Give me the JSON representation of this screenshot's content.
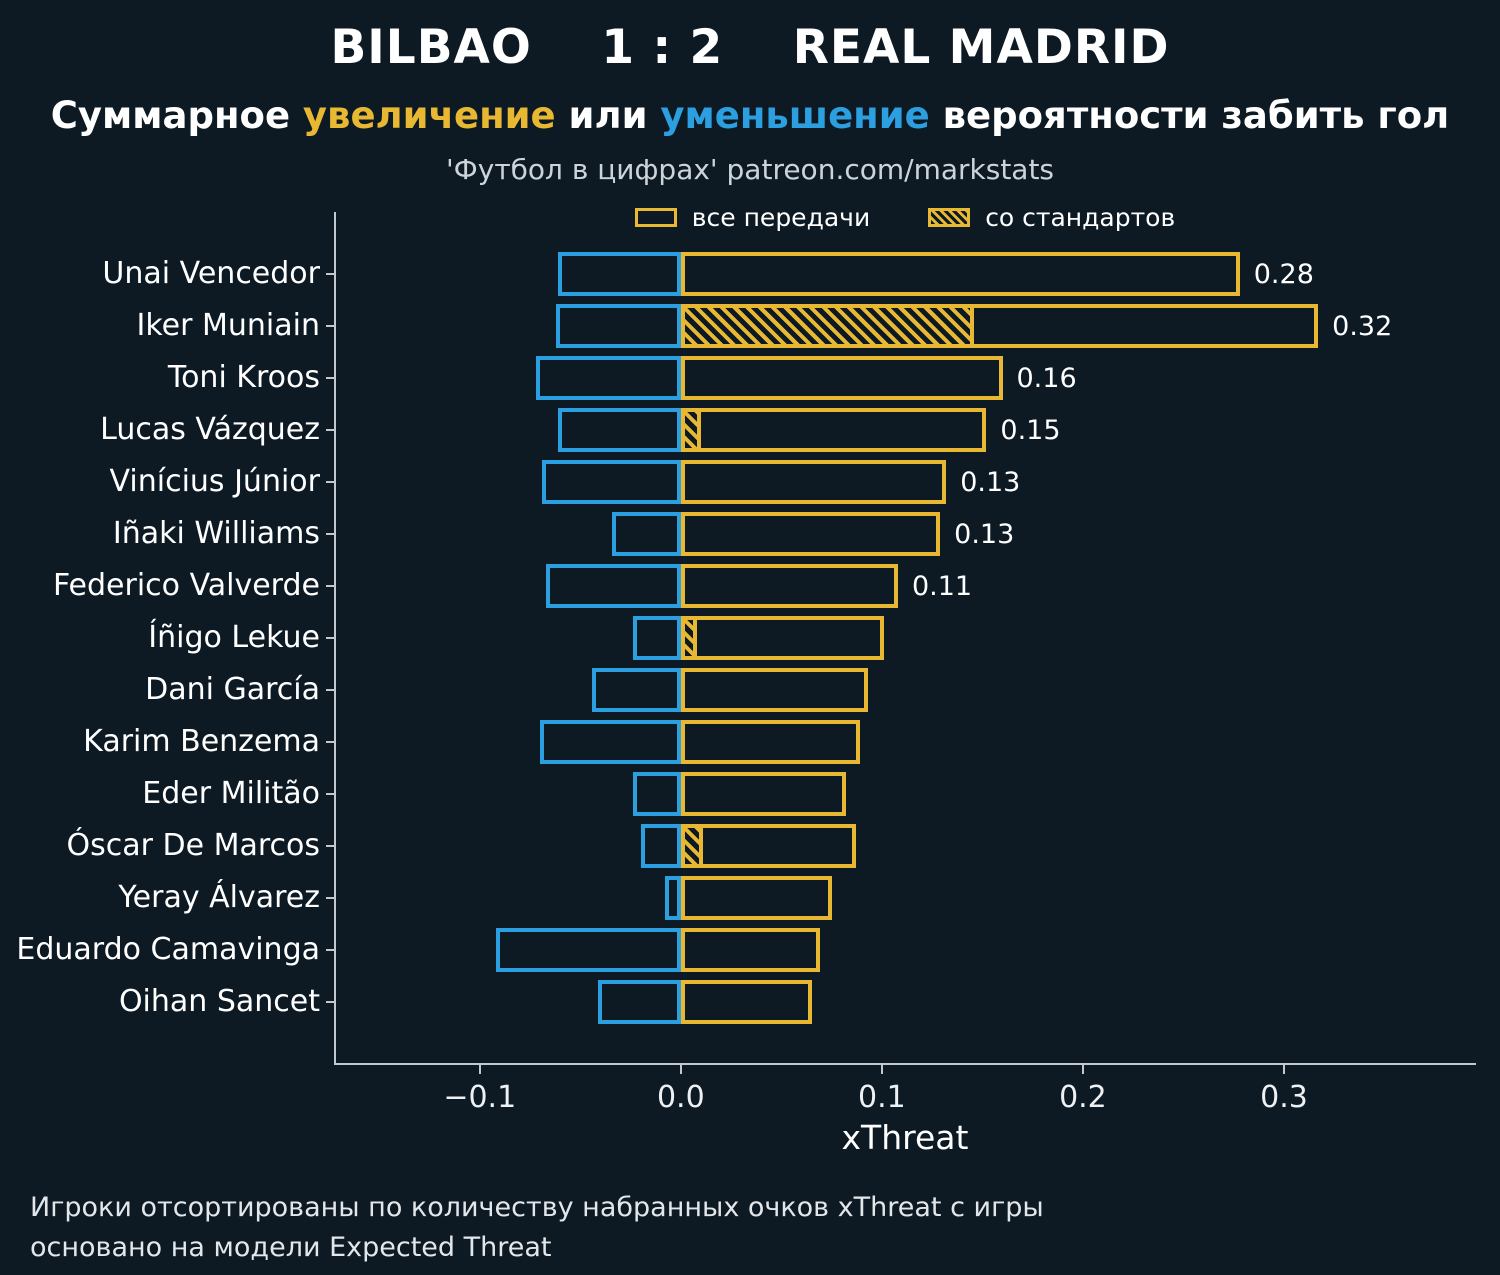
{
  "header": {
    "title": "BILBAO    1 : 2    REAL MADRID",
    "subtitle_parts": {
      "pre": "Суммарное ",
      "increase": "увеличение",
      "mid": " или ",
      "decrease": "уменьшение",
      "post": " вероятности забить гол"
    },
    "source": "'Футбол в цифрах' patreon.com/markstats"
  },
  "legend": {
    "all_passes": "все передачи",
    "set_pieces": "со стандартов"
  },
  "colors": {
    "background": "#0d1a24",
    "positive": "#e8b832",
    "negative": "#2b9fe0",
    "text": "#ffffff"
  },
  "chart_data": {
    "type": "bar",
    "orientation": "horizontal",
    "title": "BILBAO 1 : 2 REAL MADRID — xThreat по игрокам",
    "xlabel": "xThreat",
    "xlim": [
      -0.172,
      0.395
    ],
    "grid": false,
    "legend_position": "top-center",
    "categories": [
      "Unai Vencedor",
      "Iker Muniain",
      "Toni Kroos",
      "Lucas Vázquez",
      "Vinícius Júnior",
      "Iñaki Williams",
      "Federico Valverde",
      "Íñigo Lekue",
      "Dani García",
      "Karim Benzema",
      "Eder Militão",
      "Óscar De Marcos",
      "Yeray Álvarez",
      "Eduardo Camavinga",
      "Oihan Sancet"
    ],
    "series": [
      {
        "name": "все передачи (увеличение)",
        "values": [
          0.278,
          0.317,
          0.16,
          0.152,
          0.132,
          0.129,
          0.108,
          0.101,
          0.093,
          0.089,
          0.082,
          0.087,
          0.075,
          0.069,
          0.065
        ]
      },
      {
        "name": "уменьшение вероятности",
        "values": [
          -0.061,
          -0.062,
          -0.072,
          -0.061,
          -0.069,
          -0.034,
          -0.067,
          -0.024,
          -0.044,
          -0.07,
          -0.024,
          -0.02,
          -0.008,
          -0.092,
          -0.041
        ]
      },
      {
        "name": "со стандартов",
        "values": [
          0,
          0.146,
          0,
          0.01,
          0,
          0,
          0,
          0.008,
          0,
          0,
          0,
          0.011,
          0,
          0,
          0
        ]
      }
    ],
    "value_labels": [
      "0.28",
      "0.32",
      "0.16",
      "0.15",
      "0.13",
      "0.13",
      "0.11",
      "",
      "",
      "",
      "",
      "",
      "",
      "",
      ""
    ],
    "xticks": [
      {
        "v": -0.1,
        "label": "−0.1"
      },
      {
        "v": 0.0,
        "label": "0.0"
      },
      {
        "v": 0.1,
        "label": "0.1"
      },
      {
        "v": 0.2,
        "label": "0.2"
      },
      {
        "v": 0.3,
        "label": "0.3"
      }
    ]
  },
  "footer": {
    "line1": "Игроки отсортированы по количеству набранных очков xThreat с игры",
    "line2": "основано на модели Expected Threat"
  }
}
